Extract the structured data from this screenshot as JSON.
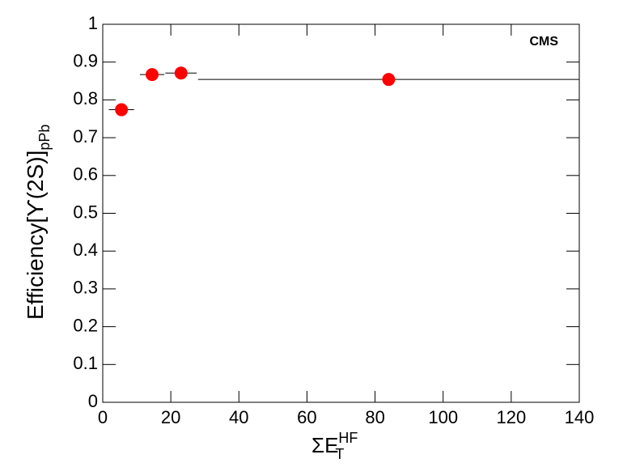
{
  "chart_data": {
    "type": "scatter",
    "x": [
      5.5,
      14.5,
      23,
      84
    ],
    "xerr": [
      3.7,
      3.6,
      4.6,
      56
    ],
    "values": [
      0.774,
      0.867,
      0.871,
      0.854
    ],
    "color": "#ff0000",
    "xlim": [
      0,
      140
    ],
    "ylim": [
      0,
      1
    ],
    "xticks": [
      0,
      20,
      40,
      60,
      80,
      100,
      120,
      140
    ],
    "yticks": [
      0,
      0.1,
      0.2,
      0.3,
      0.4,
      0.5,
      0.6,
      0.7,
      0.8,
      0.9,
      1
    ],
    "x_label": "ΣE",
    "x_label_sub": "T",
    "x_label_sup": "HF",
    "y_label": "Efficiency[ϒ(2S)]",
    "y_label_sub": "pPb",
    "annotation": "CMS"
  }
}
